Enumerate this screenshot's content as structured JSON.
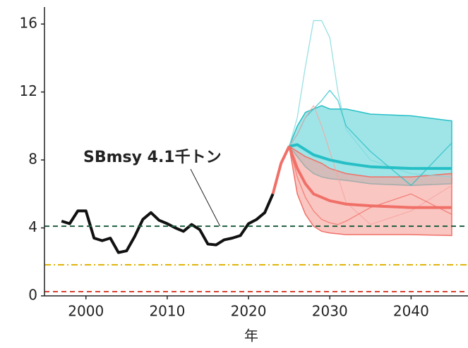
{
  "chart_data": {
    "type": "line",
    "x_label": "年",
    "xlim": [
      1994.9,
      2047
    ],
    "xticks": [
      2000,
      2010,
      2020,
      2030,
      2040
    ],
    "ylim": [
      0,
      17
    ],
    "yticks": [
      0,
      4,
      8,
      12,
      16
    ],
    "hlines": [
      {
        "value": 4.1,
        "color": "#1d5e3e",
        "dash": "7,5"
      },
      {
        "value": 1.83,
        "color": "#e0b000",
        "dash": "9,4,2,4"
      },
      {
        "value": 0.25,
        "color": "#d84030",
        "dash": "7,5"
      }
    ],
    "annotation": {
      "text": "SBmsy 4.1千トン",
      "x": 2016.5,
      "y": 4.1
    },
    "series": [
      {
        "style": "band",
        "color": "#26bfc6",
        "fill": "#5fd3d8",
        "x": [
          2025,
          2026,
          2027,
          2028,
          2029,
          2030,
          2032,
          2035,
          2040,
          2045
        ],
        "lower": [
          8.8,
          8.2,
          7.6,
          7.2,
          7.0,
          6.9,
          6.8,
          6.6,
          6.5,
          6.6
        ],
        "upper": [
          8.8,
          10.0,
          10.8,
          11.0,
          11.2,
          11.0,
          11.0,
          10.7,
          10.6,
          10.3
        ]
      },
      {
        "style": "band",
        "color": "#f07068",
        "fill": "#f7a09a",
        "x": [
          2025,
          2026,
          2027,
          2028,
          2029,
          2030,
          2032,
          2035,
          2040,
          2045
        ],
        "lower": [
          8.8,
          6.0,
          4.8,
          4.1,
          3.8,
          3.7,
          3.6,
          3.6,
          3.6,
          3.55
        ],
        "upper": [
          8.8,
          8.5,
          8.2,
          8.0,
          7.8,
          7.5,
          7.2,
          7.0,
          7.0,
          7.2
        ]
      },
      {
        "style": "thin",
        "color": "#7fd8dc",
        "x": [
          2025,
          2026,
          2027,
          2028,
          2029,
          2030,
          2031,
          2032,
          2035,
          2040,
          2045
        ],
        "values": [
          8.8,
          10.5,
          13.5,
          16.2,
          16.2,
          15.2,
          12.0,
          9.8,
          8.0,
          7.2,
          7.0
        ]
      },
      {
        "style": "thin",
        "color": "#26bfc6",
        "x": [
          2025,
          2026,
          2027,
          2028,
          2029,
          2030,
          2031,
          2032,
          2035,
          2040,
          2045
        ],
        "values": [
          8.8,
          9.5,
          10.5,
          11.0,
          11.5,
          12.1,
          11.5,
          10.0,
          8.5,
          6.5,
          9.0
        ]
      },
      {
        "style": "thin",
        "color": "#f4a8a2",
        "x": [
          2025,
          2026,
          2027,
          2028,
          2029,
          2030,
          2031,
          2032,
          2035,
          2040,
          2045
        ],
        "values": [
          8.8,
          9.5,
          10.5,
          11.2,
          10.0,
          8.5,
          7.0,
          5.5,
          4.2,
          5.0,
          6.5
        ]
      },
      {
        "style": "thin",
        "color": "#f07068",
        "x": [
          2025,
          2026,
          2027,
          2028,
          2029,
          2030,
          2031,
          2032,
          2035,
          2040,
          2045
        ],
        "values": [
          8.8,
          7.0,
          5.8,
          5.0,
          4.5,
          4.3,
          4.2,
          4.4,
          5.2,
          6.0,
          4.8
        ]
      },
      {
        "style": "bold",
        "color": "#26bfc6",
        "x": [
          2025,
          2026,
          2027,
          2028,
          2030,
          2032,
          2035,
          2040,
          2045
        ],
        "values": [
          8.8,
          8.9,
          8.6,
          8.3,
          8.0,
          7.8,
          7.6,
          7.5,
          7.5
        ]
      },
      {
        "style": "bold",
        "color": "#f07068",
        "x": [
          2025,
          2026,
          2027,
          2028,
          2030,
          2032,
          2035,
          2040,
          2045
        ],
        "values": [
          8.8,
          7.5,
          6.6,
          6.0,
          5.6,
          5.4,
          5.3,
          5.2,
          5.2
        ]
      },
      {
        "style": "bold",
        "color": "#f07068",
        "x": [
          2023,
          2024,
          2025
        ],
        "values": [
          6.0,
          7.8,
          8.8
        ]
      },
      {
        "style": "bold",
        "color": "#111111",
        "x": [
          1997,
          1998,
          1999,
          2000,
          2001,
          2002,
          2003,
          2004,
          2005,
          2006,
          2007,
          2008,
          2009,
          2010,
          2011,
          2012,
          2013,
          2014,
          2015,
          2016,
          2017,
          2018,
          2019,
          2020,
          2021,
          2022,
          2023
        ],
        "values": [
          4.4,
          4.25,
          5.0,
          5.0,
          3.4,
          3.25,
          3.4,
          2.55,
          2.65,
          3.5,
          4.5,
          4.9,
          4.45,
          4.25,
          4.0,
          3.8,
          4.2,
          3.9,
          3.05,
          3.0,
          3.3,
          3.4,
          3.55,
          4.25,
          4.5,
          4.9,
          6.0
        ]
      }
    ]
  }
}
